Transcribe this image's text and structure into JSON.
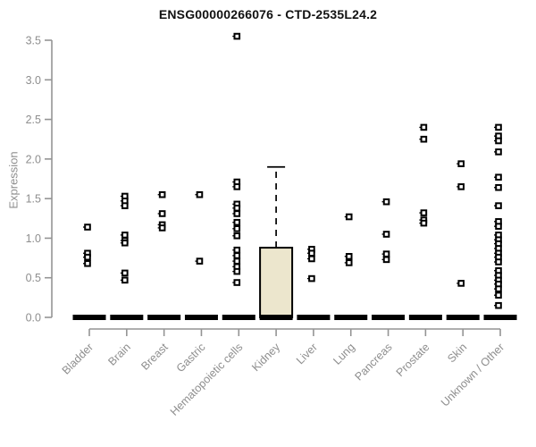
{
  "chart_data": {
    "type": "boxplot-scatter",
    "title": "ENSG00000266076 - CTD-2535L24.2",
    "ylabel": "Expression",
    "xlabel": "",
    "ylim": [
      0,
      3.5
    ],
    "ytick_labels": [
      "0.0",
      "0.5",
      "1.0",
      "1.5",
      "2.0",
      "2.5",
      "3.0",
      "3.5"
    ],
    "grid": false,
    "legend": "none",
    "categories": [
      "Bladder",
      "Brain",
      "Breast",
      "Gastric",
      "Hematopoietic cells",
      "Kidney",
      "Liver",
      "Lung",
      "Pancreas",
      "Prostate",
      "Skin",
      "Unknown / Other"
    ],
    "series": [
      {
        "category": "Bladder",
        "median": 0,
        "points": [
          1.14,
          0.81,
          0.76,
          0.68
        ]
      },
      {
        "category": "Brain",
        "median": 0,
        "points": [
          1.53,
          1.47,
          1.41,
          1.04,
          0.97,
          0.94,
          0.56,
          0.47
        ]
      },
      {
        "category": "Breast",
        "median": 0,
        "points": [
          1.55,
          1.31,
          1.17,
          1.13
        ]
      },
      {
        "category": "Gastric",
        "median": 0,
        "points": [
          1.55,
          0.71
        ]
      },
      {
        "category": "Hematopoietic cells",
        "median": 0,
        "points": [
          3.55,
          1.71,
          1.65,
          1.43,
          1.38,
          1.31,
          1.2,
          1.12,
          1.03,
          0.85,
          0.78,
          0.71,
          0.64,
          0.58,
          0.44
        ]
      },
      {
        "category": "Kidney",
        "median": 0,
        "box": {
          "q1": 0,
          "q3": 0.88,
          "whisker_high": 1.9
        },
        "points": []
      },
      {
        "category": "Liver",
        "median": 0,
        "points": [
          0.86,
          0.81,
          0.74,
          0.49
        ]
      },
      {
        "category": "Lung",
        "median": 0,
        "points": [
          1.27,
          0.77,
          0.69
        ]
      },
      {
        "category": "Pancreas",
        "median": 0,
        "points": [
          1.46,
          1.05,
          0.8,
          0.73
        ]
      },
      {
        "category": "Prostate",
        "median": 0,
        "points": [
          2.4,
          2.25,
          1.32,
          1.23,
          1.19
        ]
      },
      {
        "category": "Skin",
        "median": 0,
        "points": [
          1.94,
          1.65,
          0.43
        ]
      },
      {
        "category": "Unknown / Other",
        "median": 0,
        "points": [
          2.4,
          2.29,
          2.23,
          2.09,
          1.77,
          1.64,
          1.41,
          1.21,
          1.15,
          1.04,
          0.98,
          0.93,
          0.87,
          0.81,
          0.76,
          0.7,
          0.59,
          0.53,
          0.47,
          0.42,
          0.36,
          0.28,
          0.15
        ]
      }
    ],
    "colors": {
      "box_fill": "#ece6cd",
      "box_stroke": "#000000",
      "point": "#000000",
      "point_center": "#ffffff",
      "median_bar": "#000000",
      "axis_line": "#949494",
      "axis_text": "#8e8e8e",
      "title_text": "#111111"
    }
  }
}
